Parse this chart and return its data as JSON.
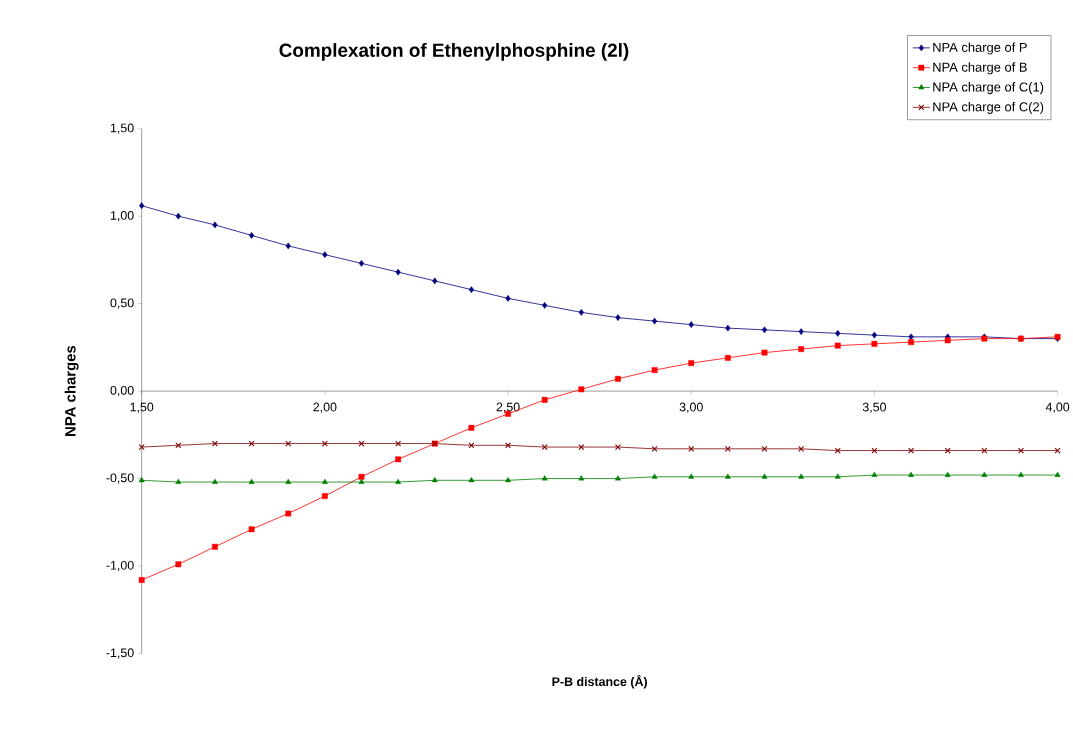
{
  "chart_data": {
    "type": "line",
    "title": "Complexation of Ethenylphosphine (2l)",
    "xlabel": "P-B distance (Å)",
    "ylabel": "NPA charges",
    "x": [
      1.5,
      1.6,
      1.7,
      1.8,
      1.9,
      2.0,
      2.1,
      2.2,
      2.3,
      2.4,
      2.5,
      2.6,
      2.7,
      2.8,
      2.9,
      3.0,
      3.1,
      3.2,
      3.3,
      3.4,
      3.5,
      3.6,
      3.7,
      3.8,
      3.9,
      4.0
    ],
    "series": [
      {
        "name": "NPA charge of P",
        "color": "#000080",
        "marker": "diamond",
        "values": [
          1.06,
          1.0,
          0.95,
          0.89,
          0.83,
          0.78,
          0.73,
          0.68,
          0.63,
          0.58,
          0.53,
          0.49,
          0.45,
          0.42,
          0.4,
          0.38,
          0.36,
          0.35,
          0.34,
          0.33,
          0.32,
          0.31,
          0.31,
          0.31,
          0.3,
          0.3
        ]
      },
      {
        "name": "NPA charge of B",
        "color": "#ff0000",
        "marker": "square",
        "values": [
          -1.08,
          -0.99,
          -0.89,
          -0.79,
          -0.7,
          -0.6,
          -0.49,
          -0.39,
          -0.3,
          -0.21,
          -0.13,
          -0.05,
          0.01,
          0.07,
          0.12,
          0.16,
          0.19,
          0.22,
          0.24,
          0.26,
          0.27,
          0.28,
          0.29,
          0.3,
          0.3,
          0.31
        ]
      },
      {
        "name": "NPA charge of C(1)",
        "color": "#008000",
        "marker": "triangle",
        "values": [
          -0.51,
          -0.52,
          -0.52,
          -0.52,
          -0.52,
          -0.52,
          -0.52,
          -0.52,
          -0.51,
          -0.51,
          -0.51,
          -0.5,
          -0.5,
          -0.5,
          -0.49,
          -0.49,
          -0.49,
          -0.49,
          -0.49,
          -0.49,
          -0.48,
          -0.48,
          -0.48,
          -0.48,
          -0.48,
          -0.48
        ]
      },
      {
        "name": "NPA charge of C(2)",
        "color": "#800000",
        "marker": "cross",
        "values": [
          -0.32,
          -0.31,
          -0.3,
          -0.3,
          -0.3,
          -0.3,
          -0.3,
          -0.3,
          -0.3,
          -0.31,
          -0.31,
          -0.32,
          -0.32,
          -0.32,
          -0.33,
          -0.33,
          -0.33,
          -0.33,
          -0.33,
          -0.34,
          -0.34,
          -0.34,
          -0.34,
          -0.34,
          -0.34,
          -0.34
        ]
      }
    ],
    "xlim": [
      1.5,
      4.0
    ],
    "ylim": [
      -1.5,
      1.5
    ],
    "xticks": [
      {
        "value": 1.5,
        "label": "1,50"
      },
      {
        "value": 2.0,
        "label": "2,00"
      },
      {
        "value": 2.5,
        "label": "2,50"
      },
      {
        "value": 3.0,
        "label": "3,00"
      },
      {
        "value": 3.5,
        "label": "3,50"
      },
      {
        "value": 4.0,
        "label": "4,00"
      }
    ],
    "yticks": [
      {
        "value": -1.5,
        "label": "-1,50"
      },
      {
        "value": -1.0,
        "label": "-1,00"
      },
      {
        "value": -0.5,
        "label": "-0,50"
      },
      {
        "value": 0.0,
        "label": "0,00"
      },
      {
        "value": 0.5,
        "label": "0,50"
      },
      {
        "value": 1.0,
        "label": "1,00"
      },
      {
        "value": 1.5,
        "label": "1,50"
      }
    ],
    "grid": false,
    "legend": "top right",
    "line_style": "solid"
  }
}
